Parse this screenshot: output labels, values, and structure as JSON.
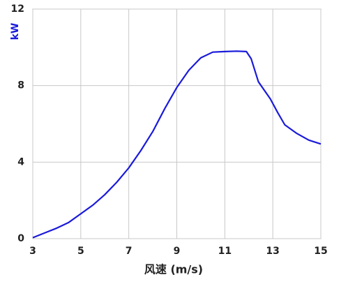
{
  "chart_data": {
    "type": "line",
    "x_label": "风速 (m/s)",
    "y_label": "kW",
    "x": [
      3,
      3.5,
      4,
      4.5,
      5,
      5.5,
      6,
      6.5,
      7,
      7.5,
      8,
      8.5,
      9,
      9.5,
      10,
      10.5,
      11,
      11.5,
      11.9,
      12.1,
      12.4,
      12.9,
      13.2,
      13.5,
      14,
      14.5,
      15
    ],
    "series": [
      {
        "color": "#1a1adb",
        "values": [
          0.05,
          0.3,
          0.55,
          0.85,
          1.3,
          1.75,
          2.3,
          2.95,
          3.7,
          4.6,
          5.6,
          6.8,
          7.9,
          8.8,
          9.45,
          9.75,
          9.78,
          9.8,
          9.78,
          9.4,
          8.2,
          7.3,
          6.6,
          5.95,
          5.5,
          5.15,
          4.95
        ]
      }
    ],
    "xlim": [
      3,
      15
    ],
    "xticks": [
      3,
      5,
      7,
      9,
      11,
      13,
      15
    ],
    "ylim": [
      0,
      12
    ],
    "yticks": [
      0,
      4,
      8,
      12
    ],
    "grid": true,
    "y_label_color": "#1a1adb"
  }
}
